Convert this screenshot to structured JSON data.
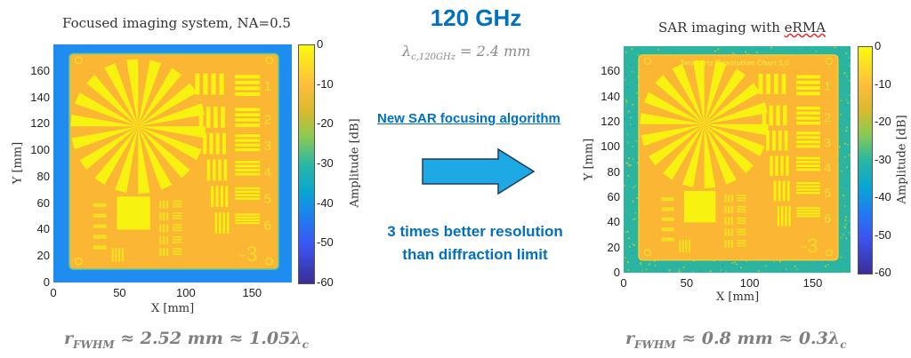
{
  "left_panel": {
    "title": "Focused imaging system, NA=0.5",
    "xlabel": "X [mm]",
    "ylabel": "Y [mm]",
    "x_ticks": [
      "0",
      "50",
      "100",
      "150"
    ],
    "y_ticks": [
      "0",
      "20",
      "40",
      "60",
      "80",
      "100",
      "120",
      "140",
      "160"
    ],
    "colorbar_label": "Amplitude [dB]",
    "colorbar_ticks": [
      "0",
      "-10",
      "-20",
      "-30",
      "-40",
      "-50",
      "-60"
    ],
    "formula": "r_FWHM ≈ 2.52 mm ≈ 1.05λ_c",
    "formula_parts": {
      "r": "r",
      "sub": "FWHM",
      "rest": " ≈ 2.52 mm ≈ 1.05λ",
      "sub2": "c"
    }
  },
  "right_panel": {
    "title_prefix": "SAR imaging with ",
    "title_word": "eRMA",
    "xlabel": "X [mm]",
    "ylabel": "Y [mm]",
    "x_ticks": [
      "0",
      "50",
      "100",
      "150"
    ],
    "y_ticks": [
      "0",
      "20",
      "40",
      "60",
      "80",
      "100",
      "120",
      "140",
      "160"
    ],
    "colorbar_label": "Amplitude [dB]",
    "colorbar_ticks": [
      "0",
      "-10",
      "-20",
      "-30",
      "-40",
      "-50",
      "-60"
    ],
    "chart_header": "Terahertz Resolution Chart 1.0",
    "formula_parts": {
      "r": "r",
      "sub": "FWHM",
      "rest": " ≈ 0.8 mm ≈ 0.3λ",
      "sub2": "c"
    }
  },
  "center": {
    "frequency": "120 GHz",
    "wavelength": {
      "lambda": "λ",
      "sub": "c,120GHz",
      "rest": " = 2.4 mm"
    },
    "algorithm_label": "New SAR focusing algorithm",
    "improvement_line1": "3 times better resolution",
    "improvement_line2": "than diffraction limit"
  },
  "colors": {
    "accent_blue": "#0070c0",
    "arrow_fill": "#1ea8e4",
    "formula_gray": "#7f7f7f"
  },
  "axis_range_mm": [
    0,
    180
  ],
  "colorbar_range_db": [
    -60,
    0
  ]
}
